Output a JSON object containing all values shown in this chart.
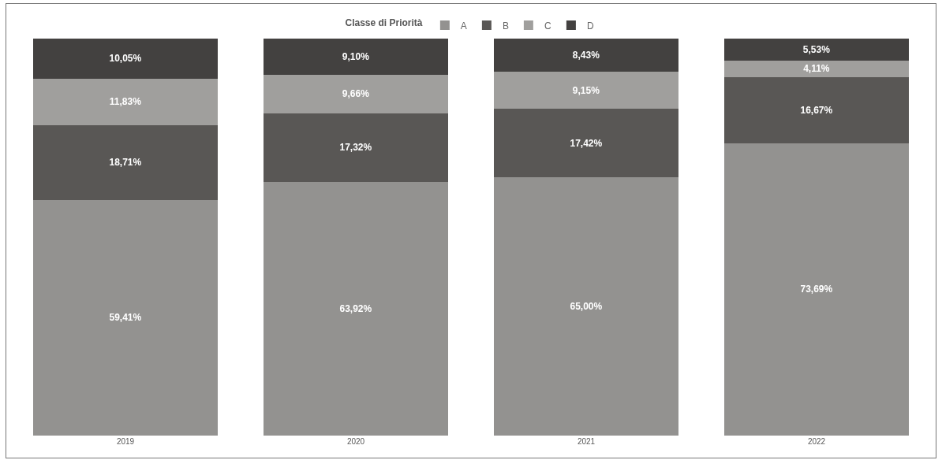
{
  "chart_data": {
    "type": "bar",
    "stacked": true,
    "legend_title": "Classe di Priorità",
    "legend": "top",
    "tick_labels": "x",
    "ylim": [
      0,
      100
    ],
    "categories": [
      "2019",
      "2020",
      "2021",
      "2022"
    ],
    "series": [
      {
        "name": "A",
        "color": "#939290",
        "values": [
          59.41,
          63.92,
          65.0,
          73.69
        ],
        "value_labels": [
          "59,41%",
          "63,92%",
          "65,00%",
          "73,69%"
        ]
      },
      {
        "name": "B",
        "color": "#595755",
        "values": [
          18.71,
          17.32,
          17.42,
          16.67
        ],
        "value_labels": [
          "18,71%",
          "17,32%",
          "17,42%",
          "16,67%"
        ]
      },
      {
        "name": "C",
        "color": "#a09f9d",
        "values": [
          11.83,
          9.66,
          9.15,
          4.11
        ],
        "value_labels": [
          "11,83%",
          "9,66%",
          "9,15%",
          "4,11%"
        ]
      },
      {
        "name": "D",
        "color": "#434140",
        "values": [
          10.05,
          9.1,
          8.43,
          5.53
        ],
        "value_labels": [
          "10,05%",
          "9,10%",
          "8,43%",
          "5,53%"
        ]
      }
    ]
  }
}
